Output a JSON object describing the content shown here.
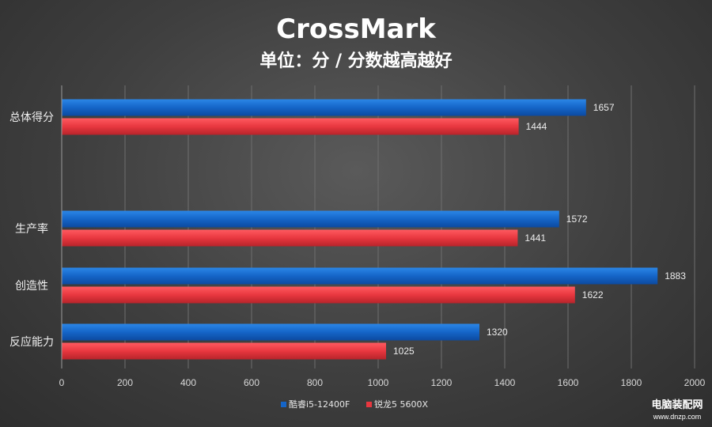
{
  "chart_data": {
    "type": "bar",
    "orientation": "horizontal",
    "title": "CrossMark",
    "subtitle": "单位：分 / 分数越高越好",
    "categories": [
      "总体得分",
      "生产率",
      "创造性",
      "反应能力"
    ],
    "series": [
      {
        "name": "酷睿i5-12400F",
        "color": "#1565c8",
        "values": [
          1657,
          1572,
          1883,
          1320
        ]
      },
      {
        "name": "锐龙5 5600X",
        "color": "#e8373f",
        "values": [
          1444,
          1441,
          1622,
          1025
        ]
      }
    ],
    "xlim": [
      0,
      2000
    ],
    "xticks": [
      0,
      200,
      400,
      600,
      800,
      1000,
      1200,
      1400,
      1600,
      1800,
      2000
    ],
    "grid": true,
    "legend_position": "bottom"
  },
  "watermark": {
    "name": "电脑装配网",
    "url": "www.dnzp.com"
  }
}
